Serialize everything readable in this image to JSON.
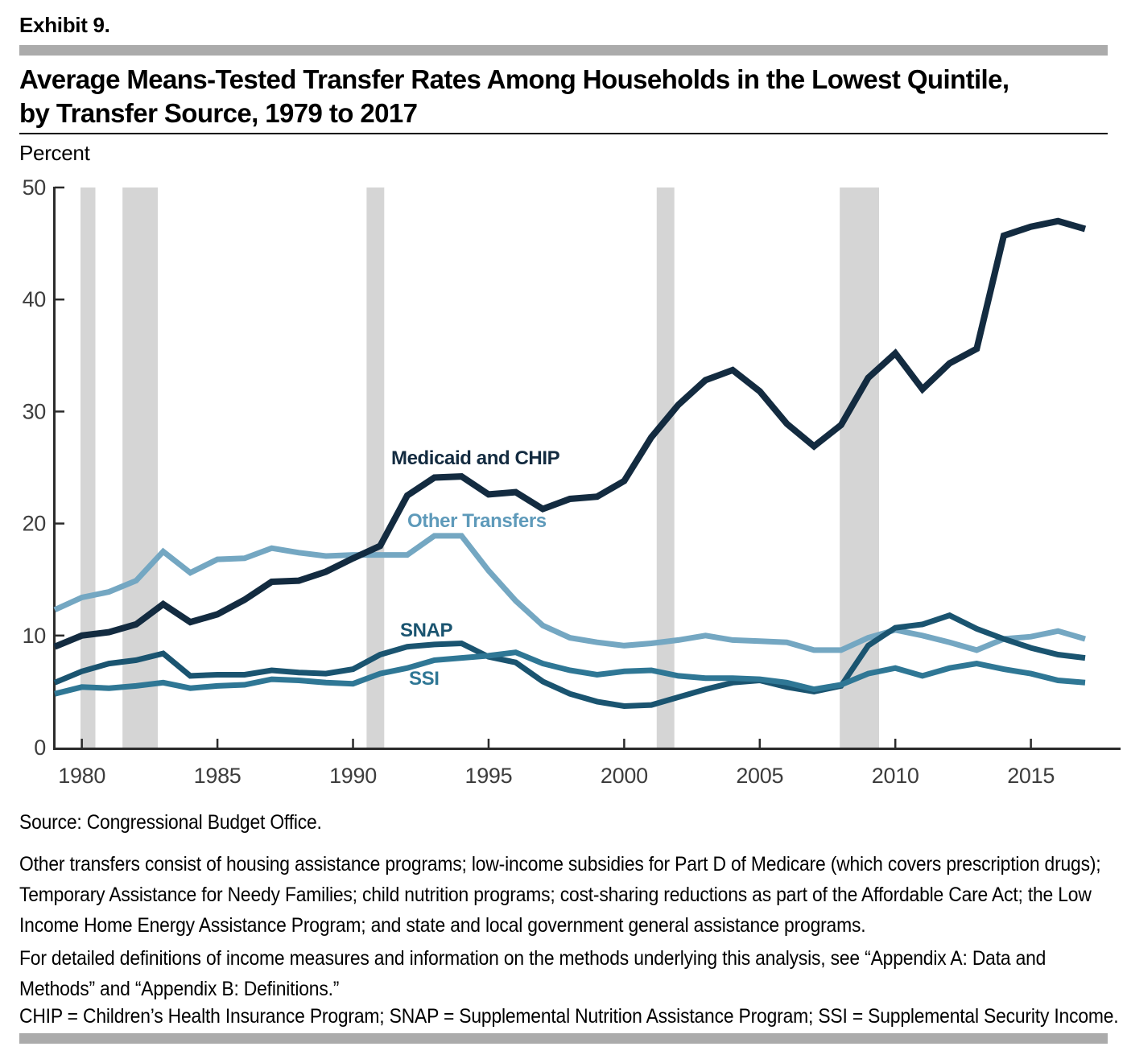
{
  "page": {
    "exhibit_label": "Exhibit 9.",
    "title_line1": "Average Means-Tested Transfer Rates Among Households in the Lowest Quintile,",
    "title_line2": "by Transfer Source, 1979 to 2017",
    "axis_unit_label": "Percent"
  },
  "colors": {
    "divider_gray": "#ABABAB",
    "recession_band": "#D5D5D5",
    "axis": "#2B2B2B",
    "tick_label": "#3D3D3D",
    "text": "#000000"
  },
  "chart_data": {
    "type": "line",
    "title": "Average Means-Tested Transfer Rates Among Households in the Lowest Quintile, by Transfer Source, 1979 to 2017",
    "xlabel": "",
    "ylabel": "Percent",
    "ylim": [
      0,
      50
    ],
    "yticks": [
      0,
      10,
      20,
      30,
      40,
      50
    ],
    "xticks": [
      1980,
      1985,
      1990,
      1995,
      2000,
      2005,
      2010,
      2015
    ],
    "x_range": [
      1979,
      2017
    ],
    "grid": false,
    "legend_position": "inline-labels",
    "recession_bands_years": [
      [
        1979.95,
        1980.5
      ],
      [
        1981.5,
        1982.8
      ],
      [
        1990.5,
        1991.15
      ],
      [
        2001.2,
        2001.85
      ],
      [
        2007.95,
        2009.4
      ]
    ],
    "x": [
      1979,
      1980,
      1981,
      1982,
      1983,
      1984,
      1985,
      1986,
      1987,
      1988,
      1989,
      1990,
      1991,
      1992,
      1993,
      1994,
      1995,
      1996,
      1997,
      1998,
      1999,
      2000,
      2001,
      2002,
      2003,
      2004,
      2005,
      2006,
      2007,
      2008,
      2009,
      2010,
      2011,
      2012,
      2013,
      2014,
      2015,
      2016,
      2017
    ],
    "series": [
      {
        "name": "Medicaid and CHIP",
        "color": "#132B40",
        "label_color": "#132B40",
        "line_width": 8,
        "values": [
          9.0,
          10.0,
          10.3,
          11.0,
          12.8,
          11.2,
          11.9,
          13.2,
          14.8,
          14.9,
          15.7,
          16.9,
          18.0,
          22.5,
          24.1,
          24.2,
          22.6,
          22.8,
          21.3,
          22.2,
          22.4,
          23.8,
          27.7,
          30.6,
          32.8,
          33.7,
          31.8,
          28.9,
          26.9,
          28.8,
          33.0,
          35.2,
          32.0,
          34.3,
          35.6,
          45.7,
          46.5,
          47.0,
          46.3
        ]
      },
      {
        "name": "Other Transfers",
        "color": "#74A7C2",
        "label_color": "#5E9ABA",
        "line_width": 7,
        "values": [
          12.3,
          13.4,
          13.9,
          14.9,
          17.5,
          15.6,
          16.8,
          16.9,
          17.8,
          17.4,
          17.1,
          17.2,
          17.2,
          17.2,
          18.9,
          18.9,
          15.8,
          13.1,
          10.9,
          9.8,
          9.4,
          9.1,
          9.3,
          9.6,
          10.0,
          9.6,
          9.5,
          9.4,
          8.7,
          8.7,
          9.8,
          10.5,
          10.0,
          9.4,
          8.7,
          9.7,
          9.9,
          10.4,
          9.7
        ]
      },
      {
        "name": "SNAP",
        "color": "#1A5470",
        "label_color": "#1A5470",
        "line_width": 7,
        "values": [
          5.8,
          6.8,
          7.5,
          7.8,
          8.4,
          6.4,
          6.5,
          6.5,
          6.9,
          6.7,
          6.6,
          7.0,
          8.3,
          9.0,
          9.2,
          9.3,
          8.1,
          7.6,
          5.9,
          4.8,
          4.1,
          3.7,
          3.8,
          4.5,
          5.2,
          5.8,
          6.0,
          5.4,
          5.0,
          5.5,
          9.1,
          10.7,
          11.0,
          11.8,
          10.6,
          9.7,
          8.9,
          8.3,
          8.0
        ]
      },
      {
        "name": "SSI",
        "color": "#2F7795",
        "label_color": "#2F7795",
        "line_width": 7,
        "values": [
          4.8,
          5.4,
          5.3,
          5.5,
          5.8,
          5.3,
          5.5,
          5.6,
          6.1,
          6.0,
          5.8,
          5.7,
          6.6,
          7.1,
          7.8,
          8.0,
          8.2,
          8.5,
          7.5,
          6.9,
          6.5,
          6.8,
          6.9,
          6.4,
          6.2,
          6.2,
          6.1,
          5.8,
          5.2,
          5.6,
          6.6,
          7.1,
          6.4,
          7.1,
          7.5,
          7.0,
          6.6,
          6.0,
          5.8
        ]
      }
    ]
  },
  "footer": {
    "source": "Source: Congressional Budget Office.",
    "note_other_transfers": "Other transfers consist of housing assistance programs; low-income subsidies for Part D of Medicare (which covers prescription drugs); Temporary Assistance for Needy Families; child nutrition programs; cost-sharing reductions as part of the Affordable Care Act; the Low Income Home Energy Assistance Program; and state and local government general assistance programs.",
    "note_appendix": "For detailed definitions of income measures and information on the methods underlying this analysis, see “Appendix A: Data and Methods” and “Appendix B: Definitions.”",
    "note_abbreviations": "CHIP = Children’s Health Insurance Program; SNAP = Supplemental Nutrition Assistance Program; SSI = Supplemental Security Income."
  }
}
